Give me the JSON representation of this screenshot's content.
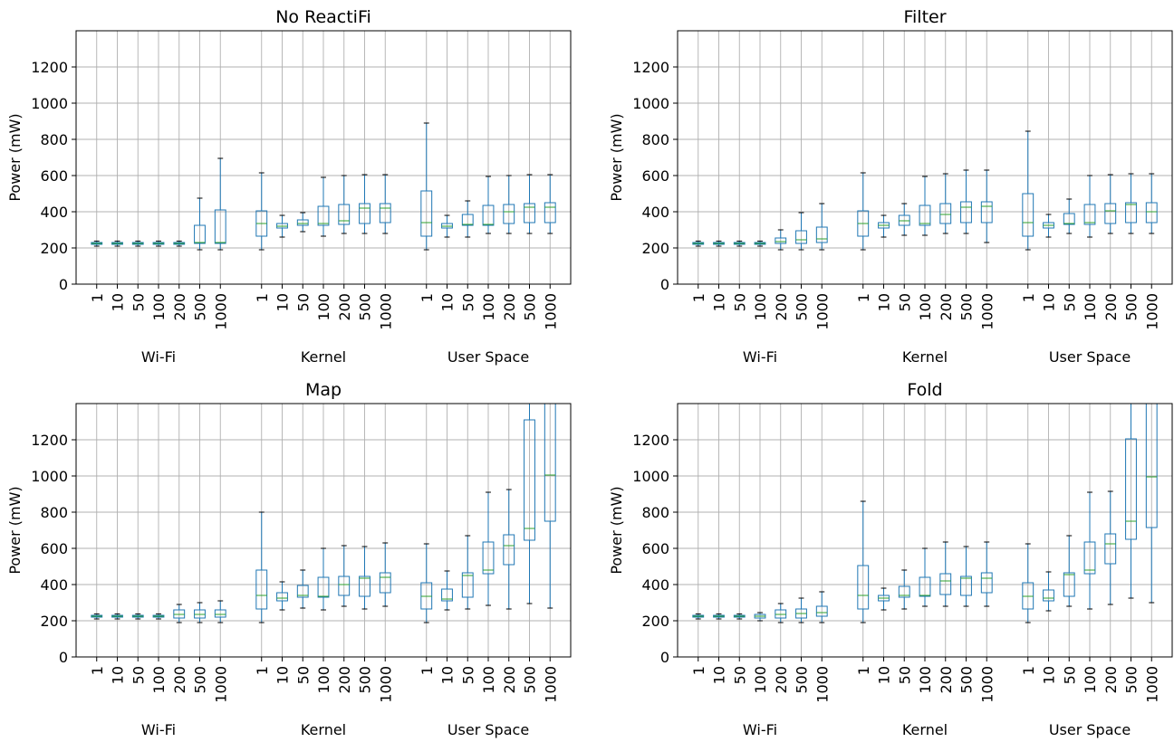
{
  "chart_data": [
    {
      "type": "box",
      "title": "No ReactiFi",
      "ylabel": "Power (mW)",
      "xlabel": "",
      "ylim": [
        0,
        1400
      ],
      "yticks": [
        0,
        200,
        400,
        600,
        800,
        1000,
        1200
      ],
      "grid": true,
      "groups": [
        {
          "name": "Wi-Fi",
          "categories": [
            "1",
            "10",
            "50",
            "100",
            "200",
            "500",
            "1000"
          ],
          "boxes": [
            [
              210,
              220,
              225,
              230,
              238
            ],
            [
              210,
              220,
              225,
              230,
              238
            ],
            [
              210,
              220,
              225,
              230,
              238
            ],
            [
              210,
              220,
              225,
              230,
              238
            ],
            [
              210,
              220,
              225,
              230,
              238
            ],
            [
              190,
              225,
              230,
              325,
              475
            ],
            [
              190,
              225,
              230,
              410,
              695
            ]
          ]
        },
        {
          "name": "Kernel",
          "categories": [
            "1",
            "10",
            "50",
            "100",
            "200",
            "500",
            "1000"
          ],
          "boxes": [
            [
              190,
              265,
              335,
              405,
              615
            ],
            [
              260,
              310,
              320,
              335,
              380
            ],
            [
              290,
              325,
              335,
              355,
              395
            ],
            [
              265,
              325,
              335,
              430,
              590
            ],
            [
              280,
              330,
              350,
              440,
              600
            ],
            [
              280,
              335,
              420,
              445,
              605
            ],
            [
              280,
              340,
              420,
              445,
              605
            ]
          ]
        },
        {
          "name": "User Space",
          "categories": [
            "1",
            "10",
            "50",
            "100",
            "200",
            "500",
            "1000"
          ],
          "boxes": [
            [
              190,
              265,
              340,
              515,
              890
            ],
            [
              260,
              310,
              320,
              335,
              380
            ],
            [
              260,
              325,
              330,
              385,
              460
            ],
            [
              280,
              325,
              330,
              435,
              595
            ],
            [
              280,
              335,
              400,
              440,
              600
            ],
            [
              280,
              340,
              425,
              445,
              605
            ],
            [
              280,
              340,
              425,
              450,
              605
            ]
          ]
        }
      ]
    },
    {
      "type": "box",
      "title": "Filter",
      "ylabel": "Power (mW)",
      "xlabel": "",
      "ylim": [
        0,
        1400
      ],
      "yticks": [
        0,
        200,
        400,
        600,
        800,
        1000,
        1200
      ],
      "grid": true,
      "groups": [
        {
          "name": "Wi-Fi",
          "categories": [
            "1",
            "10",
            "50",
            "100",
            "200",
            "500",
            "1000"
          ],
          "boxes": [
            [
              210,
              220,
              225,
              230,
              238
            ],
            [
              210,
              220,
              225,
              230,
              238
            ],
            [
              210,
              220,
              225,
              230,
              238
            ],
            [
              210,
              220,
              225,
              230,
              238
            ],
            [
              190,
              225,
              235,
              255,
              300
            ],
            [
              190,
              225,
              245,
              295,
              395
            ],
            [
              190,
              230,
              250,
              315,
              445
            ]
          ]
        },
        {
          "name": "Kernel",
          "categories": [
            "1",
            "10",
            "50",
            "100",
            "200",
            "500",
            "1000"
          ],
          "boxes": [
            [
              190,
              265,
              335,
              405,
              615
            ],
            [
              260,
              310,
              325,
              340,
              380
            ],
            [
              270,
              325,
              350,
              380,
              445
            ],
            [
              270,
              325,
              335,
              435,
              595
            ],
            [
              280,
              335,
              385,
              445,
              610
            ],
            [
              280,
              340,
              425,
              455,
              630
            ],
            [
              230,
              340,
              430,
              455,
              630
            ]
          ]
        },
        {
          "name": "User Space",
          "categories": [
            "1",
            "10",
            "50",
            "100",
            "200",
            "500",
            "1000"
          ],
          "boxes": [
            [
              190,
              265,
              340,
              500,
              845
            ],
            [
              260,
              310,
              325,
              340,
              385
            ],
            [
              280,
              330,
              335,
              390,
              470
            ],
            [
              260,
              330,
              340,
              440,
              600
            ],
            [
              280,
              335,
              405,
              445,
              605
            ],
            [
              280,
              340,
              440,
              450,
              610
            ],
            [
              280,
              340,
              400,
              450,
              610
            ]
          ]
        }
      ]
    },
    {
      "type": "box",
      "title": "Map",
      "ylabel": "Power (mW)",
      "xlabel": "",
      "ylim": [
        0,
        1400
      ],
      "yticks": [
        0,
        200,
        400,
        600,
        800,
        1000,
        1200
      ],
      "grid": true,
      "groups": [
        {
          "name": "Wi-Fi",
          "categories": [
            "1",
            "10",
            "50",
            "100",
            "200",
            "500",
            "1000"
          ],
          "boxes": [
            [
              210,
              220,
              225,
              230,
              238
            ],
            [
              210,
              220,
              225,
              230,
              238
            ],
            [
              210,
              220,
              225,
              230,
              238
            ],
            [
              210,
              220,
              225,
              230,
              238
            ],
            [
              190,
              215,
              235,
              260,
              290
            ],
            [
              190,
              215,
              235,
              260,
              300
            ],
            [
              190,
              220,
              235,
              260,
              310
            ]
          ]
        },
        {
          "name": "Kernel",
          "categories": [
            "1",
            "10",
            "50",
            "100",
            "200",
            "500",
            "1000"
          ],
          "boxes": [
            [
              190,
              265,
              340,
              480,
              800
            ],
            [
              260,
              310,
              325,
              355,
              415
            ],
            [
              270,
              330,
              340,
              395,
              480
            ],
            [
              260,
              330,
              335,
              440,
              600
            ],
            [
              280,
              340,
              400,
              445,
              615
            ],
            [
              265,
              335,
              435,
              445,
              610
            ],
            [
              280,
              355,
              440,
              465,
              630
            ]
          ]
        },
        {
          "name": "User Space",
          "categories": [
            "1",
            "10",
            "50",
            "100",
            "200",
            "500",
            "1000"
          ],
          "boxes": [
            [
              190,
              265,
              335,
              410,
              625
            ],
            [
              260,
              310,
              320,
              375,
              475
            ],
            [
              265,
              330,
              450,
              465,
              670
            ],
            [
              285,
              460,
              480,
              635,
              910
            ],
            [
              265,
              510,
              615,
              675,
              925
            ],
            [
              295,
              645,
              710,
              1310,
              1400
            ],
            [
              270,
              750,
              1005,
              1400,
              1400
            ]
          ]
        }
      ]
    },
    {
      "type": "box",
      "title": "Fold",
      "ylabel": "Power (mW)",
      "xlabel": "",
      "ylim": [
        0,
        1400
      ],
      "yticks": [
        0,
        200,
        400,
        600,
        800,
        1000,
        1200
      ],
      "grid": true,
      "groups": [
        {
          "name": "Wi-Fi",
          "categories": [
            "1",
            "10",
            "50",
            "100",
            "200",
            "500",
            "1000"
          ],
          "boxes": [
            [
              210,
              220,
              225,
              230,
              238
            ],
            [
              210,
              220,
              225,
              230,
              238
            ],
            [
              210,
              220,
              225,
              230,
              238
            ],
            [
              200,
              215,
              225,
              235,
              245
            ],
            [
              190,
              215,
              235,
              260,
              295
            ],
            [
              190,
              215,
              240,
              265,
              325
            ],
            [
              190,
              225,
              245,
              280,
              360
            ]
          ]
        },
        {
          "name": "Kernel",
          "categories": [
            "1",
            "10",
            "50",
            "100",
            "200",
            "500",
            "1000"
          ],
          "boxes": [
            [
              190,
              265,
              340,
              505,
              860
            ],
            [
              260,
              310,
              325,
              340,
              380
            ],
            [
              265,
              330,
              340,
              390,
              480
            ],
            [
              280,
              335,
              340,
              440,
              600
            ],
            [
              280,
              345,
              420,
              460,
              635
            ],
            [
              280,
              340,
              435,
              445,
              610
            ],
            [
              280,
              355,
              435,
              465,
              635
            ]
          ]
        },
        {
          "name": "User Space",
          "categories": [
            "1",
            "10",
            "50",
            "100",
            "200",
            "500",
            "1000"
          ],
          "boxes": [
            [
              190,
              265,
              335,
              410,
              625
            ],
            [
              255,
              310,
              325,
              370,
              470
            ],
            [
              280,
              335,
              455,
              465,
              670
            ],
            [
              265,
              460,
              480,
              635,
              910
            ],
            [
              290,
              515,
              625,
              680,
              915
            ],
            [
              325,
              650,
              750,
              1205,
              1400
            ],
            [
              300,
              715,
              995,
              1400,
              1400
            ]
          ]
        }
      ]
    }
  ],
  "colors": {
    "box": "#1f77b4",
    "median": "#2ca02c",
    "grid": "#b0b0b0",
    "axis": "#000000"
  }
}
